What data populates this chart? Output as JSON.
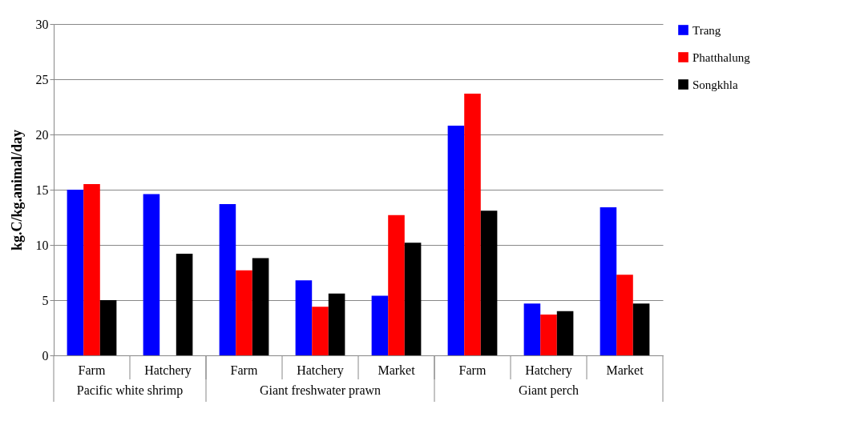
{
  "chart_data": {
    "type": "bar",
    "ylabel": "kg.C/kg.animal/day",
    "categories": [
      "Farm",
      "Hatchery",
      "Farm",
      "Hatchery",
      "Market",
      "Farm",
      "Hatchery",
      "Market"
    ],
    "series": [
      {
        "name": "Trang",
        "color": "#0000ff",
        "values": [
          15.0,
          14.6,
          13.7,
          6.8,
          5.4,
          20.8,
          4.7,
          13.4
        ]
      },
      {
        "name": "Phatthalung",
        "color": "#ff0000",
        "values": [
          15.5,
          null,
          7.7,
          4.4,
          12.7,
          23.7,
          3.7,
          7.3
        ]
      },
      {
        "name": "Songkhla",
        "color": "#000000",
        "values": [
          5.0,
          9.2,
          8.8,
          5.6,
          10.2,
          13.1,
          4.0,
          4.7
        ]
      }
    ],
    "ylim": [
      0,
      30
    ],
    "yticks": [
      0,
      5,
      10,
      15,
      20,
      25,
      30
    ],
    "grid": "y",
    "legend": "right",
    "annotations": [
      "Pacific white shrimp",
      "Giant freshwater prawn",
      "Giant perch"
    ]
  }
}
